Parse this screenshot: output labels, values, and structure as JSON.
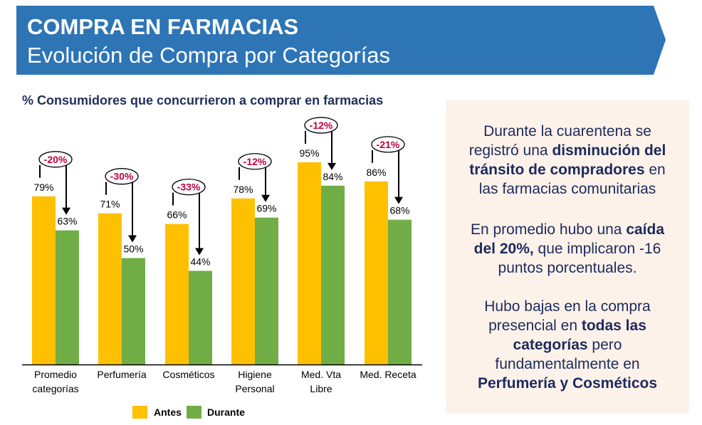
{
  "header": {
    "title": "COMPRA EN FARMACIAS",
    "subtitle": "Evolución de Compra por Categorías",
    "color": "#2e75b6"
  },
  "chart_data": {
    "type": "bar",
    "title": "% Consumidores que concurrieron a comprar en farmacias",
    "xlabel": "",
    "ylabel": "",
    "ylim": [
      0,
      100
    ],
    "grid": false,
    "legend_position": "bottom",
    "categories": [
      [
        "Promedio",
        "categorías"
      ],
      [
        "Perfumería"
      ],
      [
        "Cosméticos"
      ],
      [
        "Higiene",
        "Personal"
      ],
      [
        "Med. Vta",
        "Libre"
      ],
      [
        "Med. Receta"
      ]
    ],
    "series": [
      {
        "name": "Antes",
        "color": "#ffc000",
        "values": [
          79,
          71,
          66,
          78,
          95,
          86
        ],
        "labels": [
          "79%",
          "71%",
          "66%",
          "78%",
          "95%",
          "86%"
        ]
      },
      {
        "name": "Durante",
        "color": "#70ad47",
        "values": [
          63,
          50,
          44,
          69,
          84,
          68
        ],
        "labels": [
          "63%",
          "50%",
          "44%",
          "69%",
          "84%",
          "68%"
        ]
      }
    ],
    "annotations": {
      "type": "change-callout",
      "color": "#c00040",
      "values": [
        "-20%",
        "-30%",
        "-33%",
        "-12%",
        "-12%",
        "-21%"
      ]
    }
  },
  "side_panel": {
    "paragraph1": {
      "line1": "Durante la cuarentena se",
      "line2_pre": "registró una ",
      "line2_bold": "disminución del",
      "line3_bold": "tránsito de compradores",
      "line3_post": " en",
      "line4": "las farmacias comunitarias"
    },
    "paragraph2": {
      "line1_pre": "En promedio hubo una ",
      "line1_bold": "caída",
      "line2_bold": "del 20%,",
      "line2_post": " que implicaron -16",
      "line3": "puntos porcentuales."
    },
    "paragraph3": {
      "line1": "Hubo bajas en la compra",
      "line2_pre": "presencial en ",
      "line2_bold": "todas las",
      "line3_bold": "categorías",
      "line3_post": " pero",
      "line4": "fundamentalmente en",
      "line5_bold": "Perfumería y Cosméticos"
    }
  }
}
